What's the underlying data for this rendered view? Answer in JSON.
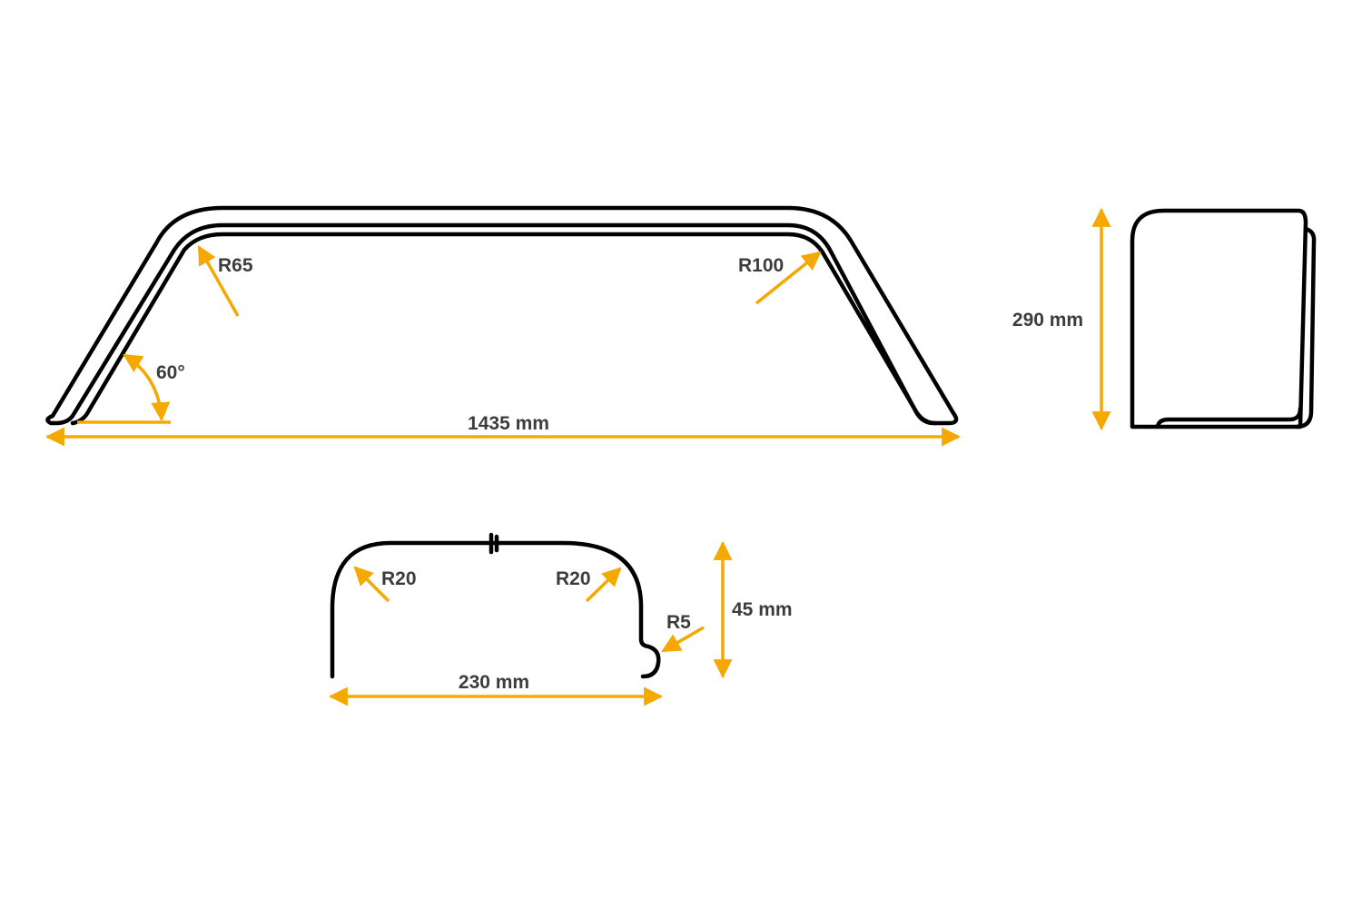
{
  "accent_color": "#f5a800",
  "front_view": {
    "radius_left": "R65",
    "radius_right": "R100",
    "angle": "60°",
    "width": "1435 mm"
  },
  "side_view": {
    "height": "290 mm"
  },
  "profile": {
    "radius_left": "R20",
    "radius_right": "R20",
    "radius_lip": "R5",
    "height": "45 mm",
    "width": "230 mm"
  }
}
